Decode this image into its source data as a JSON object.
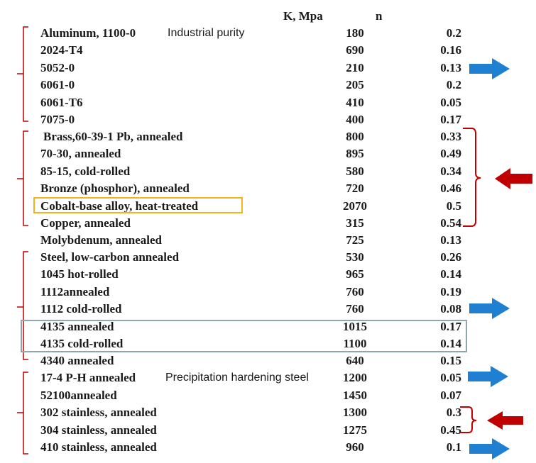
{
  "header": {
    "k_label": "K, Mpa",
    "n_label": "n"
  },
  "rows": [
    {
      "material": "Aluminum, 1100-0",
      "note": "Industrial purity",
      "k": "180",
      "n": "0.2"
    },
    {
      "material": "2024-T4",
      "k": "690",
      "n": "0.16"
    },
    {
      "material": "5052-0",
      "k": "210",
      "n": "0.13"
    },
    {
      "material": "6061-0",
      "k": "205",
      "n": "0.2"
    },
    {
      "material": "6061-T6",
      "k": "410",
      "n": "0.05"
    },
    {
      "material": "7075-0",
      "k": "400",
      "n": "0.17"
    },
    {
      "material": "Brass,60-39-1 Pb, annealed",
      "k": "800",
      "n": "0.33"
    },
    {
      "material": "70-30, annealed",
      "k": "895",
      "n": "0.49"
    },
    {
      "material": "85-15, cold-rolled",
      "k": "580",
      "n": "0.34"
    },
    {
      "material": "Bronze (phosphor), annealed",
      "k": "720",
      "n": "0.46"
    },
    {
      "material": "Cobalt-base alloy, heat-treated",
      "k": "2070",
      "n": "0.5"
    },
    {
      "material": "Copper, annealed",
      "k": "315",
      "n": "0.54"
    },
    {
      "material": "Molybdenum, annealed",
      "k": "725",
      "n": "0.13"
    },
    {
      "material": "Steel, low-carbon annealed",
      "k": "530",
      "n": "0.26"
    },
    {
      "material": "1045 hot-rolled",
      "k": "965",
      "n": "0.14"
    },
    {
      "material": "1112annealed",
      "k": "760",
      "n": "0.19"
    },
    {
      "material": "1112 cold-rolled",
      "k": "760",
      "n": "0.08"
    },
    {
      "material": "4135 annealed",
      "k": "1015",
      "n": "0.17"
    },
    {
      "material": "4135 cold-rolled",
      "k": "1100",
      "n": "0.14"
    },
    {
      "material": "4340 annealed",
      "k": "640",
      "n": "0.15"
    },
    {
      "material": "17-4 P-H annealed",
      "note": "Precipitation hardening steel",
      "k": "1200",
      "n": "0.05"
    },
    {
      "material": "52100annealed",
      "k": "1450",
      "n": "0.07"
    },
    {
      "material": "302 stainless, annealed",
      "k": "1300",
      "n": "0.3"
    },
    {
      "material": "304 stainless, annealed",
      "k": "1275",
      "n": "0.45"
    },
    {
      "material": "410 stainless, annealed",
      "k": "960",
      "n": "0.1"
    }
  ],
  "colors": {
    "bracket": "#c00000",
    "blue_arrow": "#1f7fd0",
    "red_arrow": "#c00000",
    "highlight_orange": "#f5b21b",
    "highlight_gray": "#8fa6ad"
  }
}
